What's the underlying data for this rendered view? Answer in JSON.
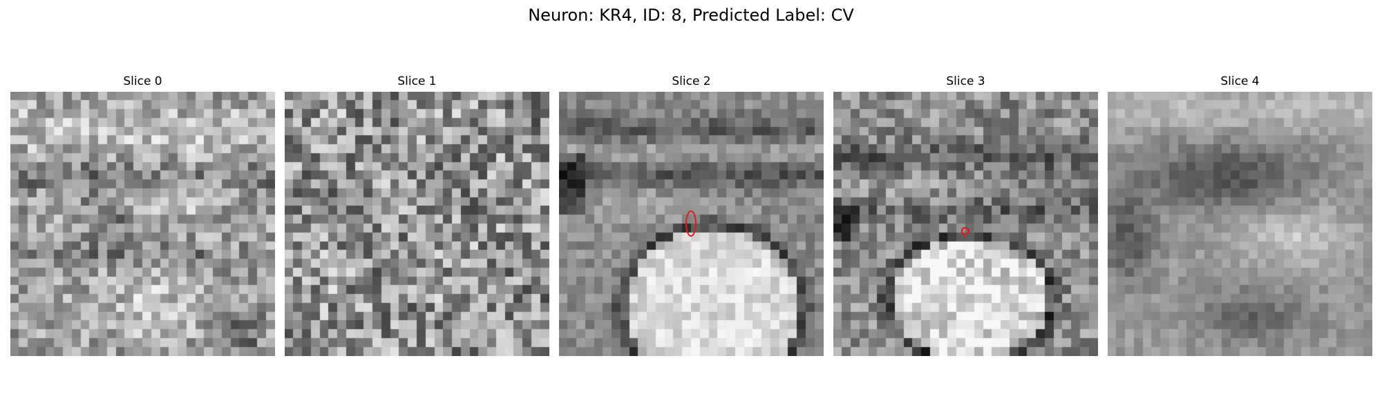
{
  "figure": {
    "title": "Neuron: KR4, ID: 8, Predicted Label: CV"
  },
  "panels": [
    {
      "title": "Slice 0",
      "seed": 11,
      "roi": null
    },
    {
      "title": "Slice 1",
      "seed": 23,
      "roi": null
    },
    {
      "title": "Slice 2",
      "seed": 37,
      "roi": {
        "color": "#e31a1c",
        "shape": "ellipse"
      }
    },
    {
      "title": "Slice 3",
      "seed": 41,
      "roi": {
        "color": "#e31a1c",
        "shape": "dot"
      }
    },
    {
      "title": "Slice 4",
      "seed": 59,
      "roi": null
    }
  ],
  "colors": {
    "background": "#ffffff",
    "roi": "#e31a1c"
  }
}
